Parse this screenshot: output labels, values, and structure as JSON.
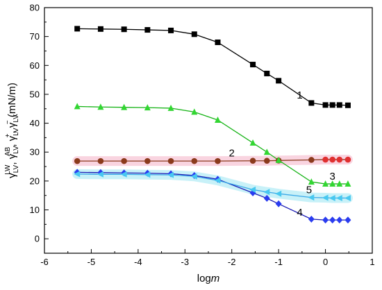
{
  "chart_data": {
    "type": "line",
    "xlabel": "logm",
    "ylabel_parts": [
      "γ",
      "LV",
      "LW",
      ", γ",
      "LV",
      "AB",
      ", γ",
      "LV",
      "+",
      ", γ",
      "LV",
      "−",
      " (mN/m)"
    ],
    "xlim": [
      -6,
      1
    ],
    "ylim": [
      -5,
      80
    ],
    "xticks": [
      -6,
      -5,
      -4,
      -3,
      -2,
      -1,
      0,
      1
    ],
    "yticks": [
      0,
      10,
      20,
      30,
      40,
      50,
      60,
      70,
      80
    ],
    "grid": false,
    "legend": "none",
    "series": [
      {
        "label": "1",
        "color": "#000000",
        "marker": "square",
        "x": [
          -5.3,
          -4.8,
          -4.3,
          -3.8,
          -3.3,
          -2.8,
          -2.3,
          -1.55,
          -1.25,
          -1.0,
          -0.3,
          0.0,
          0.15,
          0.3,
          0.48
        ],
        "y": [
          72.7,
          72.6,
          72.5,
          72.3,
          72.1,
          70.8,
          68.0,
          60.3,
          57.2,
          54.7,
          47.0,
          46.3,
          46.3,
          46.3,
          46.2
        ]
      },
      {
        "label": "2",
        "color": "#8b3a1c",
        "marker": "circle",
        "marker_color": "#8b3a1c",
        "marker_color_right": "#e03030",
        "band": "#f7c6d6",
        "x": [
          -5.3,
          -4.8,
          -4.3,
          -3.8,
          -3.3,
          -2.8,
          -2.3,
          -1.55,
          -1.25,
          -1.0,
          -0.3,
          0.0,
          0.15,
          0.3,
          0.48
        ],
        "y": [
          26.9,
          26.9,
          26.9,
          26.9,
          26.9,
          26.9,
          26.9,
          27.0,
          27.0,
          27.1,
          27.3,
          27.4,
          27.4,
          27.4,
          27.4
        ]
      },
      {
        "label": "3",
        "color": "#18b418",
        "marker": "triangle-up",
        "marker_color": "#32d632",
        "x": [
          -5.3,
          -4.8,
          -4.3,
          -3.8,
          -3.3,
          -2.8,
          -2.3,
          -1.55,
          -1.25,
          -1.0,
          -0.3,
          0.0,
          0.15,
          0.3,
          0.48
        ],
        "y": [
          45.8,
          45.6,
          45.5,
          45.4,
          45.2,
          43.9,
          41.1,
          33.2,
          30.0,
          27.2,
          19.7,
          19.0,
          19.0,
          19.0,
          19.0
        ]
      },
      {
        "label": "4",
        "color": "#1a1ab4",
        "marker": "diamond",
        "marker_color": "#2a3cf0",
        "x": [
          -5.3,
          -4.8,
          -4.3,
          -3.8,
          -3.3,
          -2.8,
          -2.3,
          -1.55,
          -1.25,
          -1.0,
          -0.3,
          0.0,
          0.15,
          0.3,
          0.48
        ],
        "y": [
          23.0,
          22.9,
          22.8,
          22.7,
          22.5,
          21.9,
          20.6,
          15.9,
          14.0,
          12.1,
          6.8,
          6.5,
          6.5,
          6.5,
          6.5
        ]
      },
      {
        "label": "5",
        "color": "#3aa8e8",
        "marker": "triangle-left",
        "marker_color": "#48c8f0",
        "band": "#b6ecf6",
        "x": [
          -5.3,
          -4.8,
          -4.3,
          -3.8,
          -3.3,
          -2.8,
          -2.3,
          -1.55,
          -1.25,
          -1.0,
          -0.3,
          0.0,
          0.15,
          0.3,
          0.48
        ],
        "y": [
          22.4,
          22.3,
          22.3,
          22.2,
          22.1,
          21.6,
          20.2,
          17.0,
          16.2,
          15.6,
          14.3,
          14.2,
          14.1,
          14.1,
          14.1
        ]
      }
    ],
    "annotations": [
      {
        "text": "1",
        "x": -0.55,
        "y": 48.5
      },
      {
        "text": "2",
        "x": -2.0,
        "y": 28.5
      },
      {
        "text": "3",
        "x": 0.15,
        "y": 20.5
      },
      {
        "text": "5",
        "x": -0.35,
        "y": 15.8
      },
      {
        "text": "4",
        "x": -0.55,
        "y": 8.0
      }
    ]
  }
}
